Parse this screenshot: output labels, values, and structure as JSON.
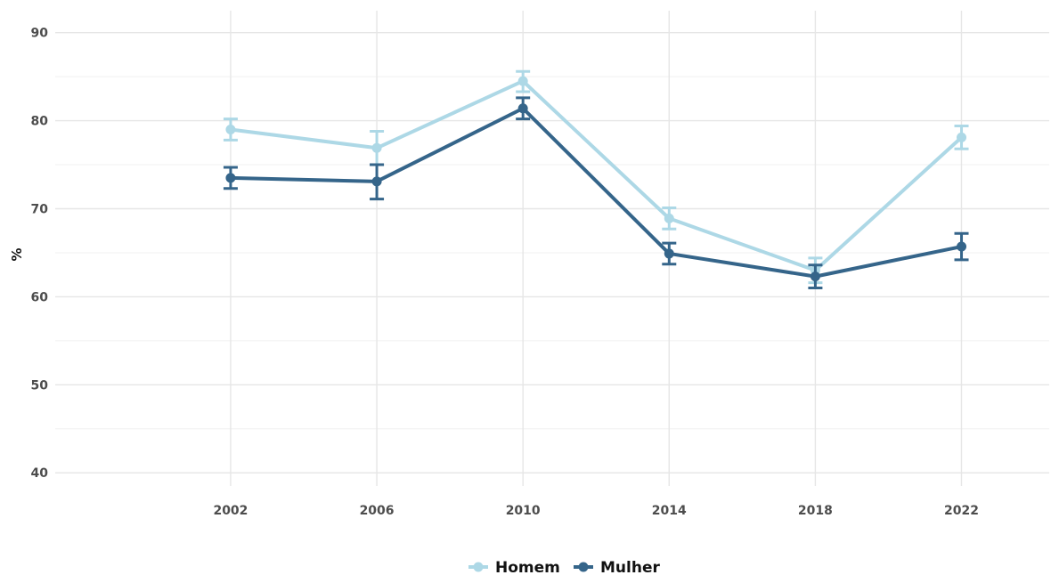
{
  "chart_data": {
    "type": "line",
    "x": [
      2002,
      2006,
      2010,
      2014,
      2018,
      2022
    ],
    "xlim": [
      1997.2,
      2024.4
    ],
    "ylim": [
      38.5,
      92.5
    ],
    "yticks": [
      40,
      50,
      60,
      70,
      80,
      90
    ],
    "ylabel": "%",
    "xlabel": "",
    "grid": true,
    "legend_position": "bottom",
    "series": [
      {
        "name": "Homem",
        "color": "#add8e6",
        "values": [
          79.0,
          76.9,
          84.5,
          68.9,
          63.0,
          78.1
        ],
        "ci_low": [
          77.8,
          75.0,
          83.3,
          67.7,
          61.6,
          76.8
        ],
        "ci_high": [
          80.2,
          78.8,
          85.6,
          70.1,
          64.4,
          79.4
        ]
      },
      {
        "name": "Mulher",
        "color": "#35658a",
        "values": [
          73.5,
          73.1,
          81.4,
          64.9,
          62.3,
          65.7
        ],
        "ci_low": [
          72.3,
          71.1,
          80.2,
          63.7,
          61.0,
          64.2
        ],
        "ci_high": [
          74.7,
          75.0,
          82.6,
          66.1,
          63.6,
          67.2
        ]
      }
    ]
  }
}
